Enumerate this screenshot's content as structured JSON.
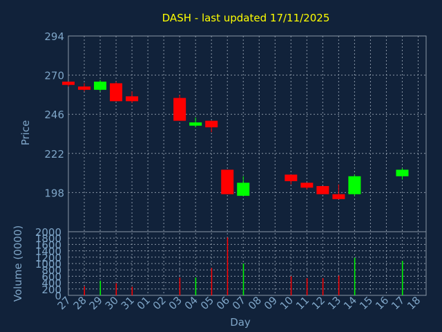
{
  "chart_data": {
    "title": "DASH - last updated 17/11/2025",
    "xlabel": "Day",
    "colors": {
      "background": "#11223a",
      "up": "#00ff00",
      "down": "#ff0000",
      "grid": "#8b98a8",
      "title": "#ffff00",
      "text": "#7fa6c8"
    },
    "categories": [
      "27",
      "28",
      "29",
      "30",
      "31",
      "01",
      "02",
      "03",
      "04",
      "05",
      "06",
      "07",
      "08",
      "09",
      "10",
      "11",
      "12",
      "13",
      "14",
      "15",
      "16",
      "17",
      "18"
    ],
    "price": {
      "type": "candlestick",
      "ylabel": "Price",
      "ylim": [
        174,
        294
      ],
      "yticks": [
        198,
        222,
        246,
        270,
        294
      ],
      "candles": [
        {
          "x": "27",
          "open": 266,
          "high": 266,
          "low": 263,
          "close": 264
        },
        {
          "x": "28",
          "open": 263,
          "high": 265,
          "low": 260,
          "close": 261
        },
        {
          "x": "29",
          "open": 261,
          "high": 267,
          "low": 260,
          "close": 266
        },
        {
          "x": "30",
          "open": 265,
          "high": 266,
          "low": 254,
          "close": 254
        },
        {
          "x": "31",
          "open": 257,
          "high": 260,
          "low": 253,
          "close": 254
        },
        {
          "x": "03",
          "open": 256,
          "high": 258,
          "low": 242,
          "close": 242
        },
        {
          "x": "04",
          "open": 239,
          "high": 244,
          "low": 238,
          "close": 241
        },
        {
          "x": "05",
          "open": 242,
          "high": 242,
          "low": 235,
          "close": 238
        },
        {
          "x": "06",
          "open": 212,
          "high": 212,
          "low": 197,
          "close": 197
        },
        {
          "x": "07",
          "open": 196,
          "high": 208,
          "low": 196,
          "close": 204
        },
        {
          "x": "10",
          "open": 209,
          "high": 209,
          "low": 203,
          "close": 205
        },
        {
          "x": "11",
          "open": 204,
          "high": 204,
          "low": 200,
          "close": 201
        },
        {
          "x": "12",
          "open": 202,
          "high": 202,
          "low": 197,
          "close": 197
        },
        {
          "x": "13",
          "open": 197,
          "high": 203,
          "low": 194,
          "close": 194
        },
        {
          "x": "14",
          "open": 197,
          "high": 209,
          "low": 196,
          "close": 208
        },
        {
          "x": "17",
          "open": 208,
          "high": 213,
          "low": 206,
          "close": 212
        }
      ]
    },
    "volume": {
      "type": "bar",
      "ylabel": "Volume (0000)",
      "ylim": [
        0,
        2000
      ],
      "yticks": [
        0,
        200,
        400,
        600,
        800,
        1000,
        1200,
        1400,
        1600,
        1800,
        2000
      ],
      "bars": [
        {
          "x": "28",
          "value": 280,
          "direction": "down"
        },
        {
          "x": "29",
          "value": 460,
          "direction": "up"
        },
        {
          "x": "30",
          "value": 380,
          "direction": "down"
        },
        {
          "x": "31",
          "value": 270,
          "direction": "down"
        },
        {
          "x": "03",
          "value": 560,
          "direction": "down"
        },
        {
          "x": "04",
          "value": 560,
          "direction": "up"
        },
        {
          "x": "05",
          "value": 860,
          "direction": "down"
        },
        {
          "x": "06",
          "value": 1820,
          "direction": "down"
        },
        {
          "x": "07",
          "value": 1000,
          "direction": "up"
        },
        {
          "x": "10",
          "value": 600,
          "direction": "down"
        },
        {
          "x": "11",
          "value": 540,
          "direction": "down"
        },
        {
          "x": "12",
          "value": 540,
          "direction": "down"
        },
        {
          "x": "13",
          "value": 620,
          "direction": "down"
        },
        {
          "x": "14",
          "value": 1180,
          "direction": "up"
        },
        {
          "x": "17",
          "value": 1080,
          "direction": "up"
        }
      ]
    },
    "grid": true
  }
}
